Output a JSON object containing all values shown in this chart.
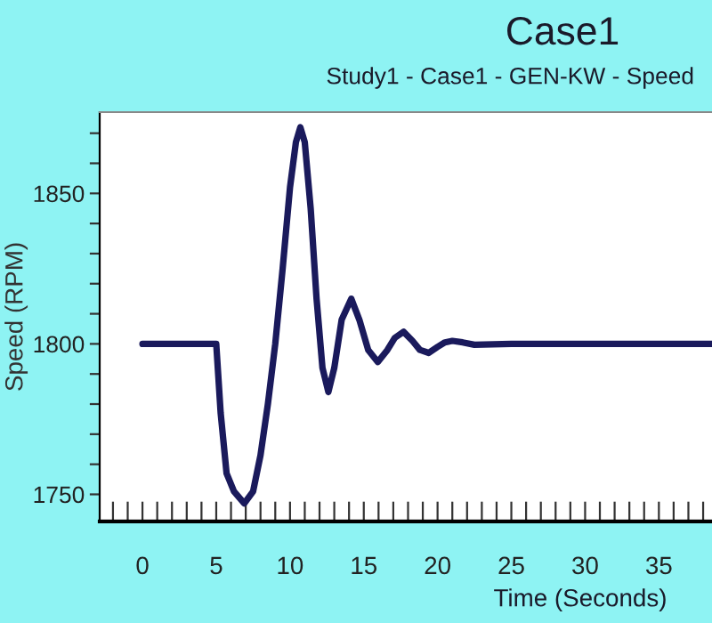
{
  "chart_data": {
    "type": "line",
    "title": "Case1",
    "subtitle": "Study1 - Case1 - GEN-KW - Speed",
    "xlabel": "Time (Seconds)",
    "ylabel": "Speed (RPM)",
    "x": [
      0,
      5,
      5.3,
      5.7,
      6.2,
      6.9,
      7.5,
      8.0,
      8.5,
      9.0,
      9.5,
      10.0,
      10.4,
      10.7,
      11.0,
      11.4,
      11.8,
      12.2,
      12.6,
      13.0,
      13.5,
      14.15,
      14.7,
      15.3,
      15.95,
      16.6,
      17.1,
      17.7,
      18.3,
      18.8,
      19.4,
      20.0,
      20.5,
      21.0,
      21.7,
      22.5,
      25,
      30,
      35,
      38.6
    ],
    "series": [
      {
        "color": "#1a1a5c",
        "values": [
          1800,
          1800,
          1777,
          1757,
          1751,
          1747,
          1751,
          1763,
          1780,
          1800,
          1825,
          1852,
          1867,
          1872,
          1867,
          1845,
          1815,
          1792,
          1784,
          1792,
          1808,
          1815,
          1808,
          1798,
          1794,
          1798,
          1802,
          1804,
          1801,
          1798,
          1797,
          1799,
          1800.5,
          1801,
          1800.5,
          1799.7,
          1800,
          1800,
          1800,
          1800
        ]
      }
    ],
    "xlim": [
      -2.9,
      38.6
    ],
    "ylim": [
      1741,
      1877
    ],
    "xticks": [
      {
        "value": -2,
        "label": null
      },
      {
        "value": -1,
        "label": null
      },
      0,
      {
        "value": 1,
        "label": null
      },
      {
        "value": 2,
        "label": null
      },
      {
        "value": 3,
        "label": null
      },
      {
        "value": 4,
        "label": null
      },
      5,
      {
        "value": 6,
        "label": null
      },
      {
        "value": 7,
        "label": null
      },
      {
        "value": 8,
        "label": null
      },
      {
        "value": 9,
        "label": null
      },
      10,
      {
        "value": 11,
        "label": null
      },
      {
        "value": 12,
        "label": null
      },
      {
        "value": 13,
        "label": null
      },
      {
        "value": 14,
        "label": null
      },
      15,
      {
        "value": 16,
        "label": null
      },
      {
        "value": 17,
        "label": null
      },
      {
        "value": 18,
        "label": null
      },
      {
        "value": 19,
        "label": null
      },
      20,
      {
        "value": 21,
        "label": null
      },
      {
        "value": 22,
        "label": null
      },
      {
        "value": 23,
        "label": null
      },
      {
        "value": 24,
        "label": null
      },
      25,
      {
        "value": 26,
        "label": null
      },
      {
        "value": 27,
        "label": null
      },
      {
        "value": 28,
        "label": null
      },
      {
        "value": 29,
        "label": null
      },
      30,
      {
        "value": 31,
        "label": null
      },
      {
        "value": 32,
        "label": null
      },
      {
        "value": 33,
        "label": null
      },
      {
        "value": 34,
        "label": null
      },
      35,
      {
        "value": 36,
        "label": null
      },
      {
        "value": 37,
        "label": null
      },
      {
        "value": 38,
        "label": null
      }
    ],
    "yticks": [
      1750,
      {
        "value": 1760,
        "label": null
      },
      {
        "value": 1770,
        "label": null
      },
      {
        "value": 1780,
        "label": null
      },
      {
        "value": 1790,
        "label": null
      },
      1800,
      {
        "value": 1810,
        "label": null
      },
      {
        "value": 1820,
        "label": null
      },
      {
        "value": 1830,
        "label": null
      },
      {
        "value": 1840,
        "label": null
      },
      1850,
      {
        "value": 1860,
        "label": null
      },
      {
        "value": 1870,
        "label": null
      }
    ],
    "grid": false,
    "legend": false,
    "marker": "none",
    "line_style": "solid"
  }
}
